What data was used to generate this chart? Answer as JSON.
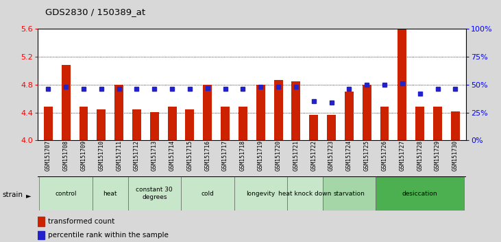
{
  "title": "GDS2830 / 150389_at",
  "samples": [
    "GSM151707",
    "GSM151708",
    "GSM151709",
    "GSM151710",
    "GSM151711",
    "GSM151712",
    "GSM151713",
    "GSM151714",
    "GSM151715",
    "GSM151716",
    "GSM151717",
    "GSM151718",
    "GSM151719",
    "GSM151720",
    "GSM151721",
    "GSM151722",
    "GSM151723",
    "GSM151724",
    "GSM151725",
    "GSM151726",
    "GSM151727",
    "GSM151728",
    "GSM151729",
    "GSM151730"
  ],
  "red_values": [
    4.48,
    5.08,
    4.48,
    4.45,
    4.8,
    4.45,
    4.41,
    4.48,
    4.45,
    4.8,
    4.48,
    4.48,
    4.8,
    4.87,
    4.85,
    4.37,
    4.37,
    4.7,
    4.8,
    4.48,
    5.6,
    4.48,
    4.48,
    4.42
  ],
  "blue_values_pct": [
    46,
    48,
    46,
    46,
    46,
    46,
    46,
    46,
    46,
    47,
    46,
    46,
    48,
    48,
    48,
    35,
    34,
    46,
    50,
    50,
    51,
    42,
    46,
    46
  ],
  "groups": [
    {
      "label": "control",
      "start": 0,
      "end": 3,
      "color": "#c8e6c9"
    },
    {
      "label": "heat",
      "start": 3,
      "end": 5,
      "color": "#c8e6c9"
    },
    {
      "label": "constant 30\ndegrees",
      "start": 5,
      "end": 8,
      "color": "#c8e6c9"
    },
    {
      "label": "cold",
      "start": 8,
      "end": 11,
      "color": "#c8e6c9"
    },
    {
      "label": "longevity",
      "start": 11,
      "end": 14,
      "color": "#c8e6c9"
    },
    {
      "label": "heat knock down",
      "start": 14,
      "end": 16,
      "color": "#c8e6c9"
    },
    {
      "label": "starvation",
      "start": 16,
      "end": 19,
      "color": "#a5d6a7"
    },
    {
      "label": "desiccation",
      "start": 19,
      "end": 24,
      "color": "#4caf50"
    }
  ],
  "ylim_left": [
    4.0,
    5.6
  ],
  "ylim_right": [
    0,
    100
  ],
  "yticks_left": [
    4.0,
    4.4,
    4.8,
    5.2,
    5.6
  ],
  "yticks_right": [
    0,
    25,
    50,
    75,
    100
  ],
  "ytick_labels_right": [
    "0%",
    "25%",
    "50%",
    "75%",
    "100%"
  ],
  "bar_color": "#cc2200",
  "blue_color": "#2222cc",
  "bg_color": "#d8d8d8",
  "plot_bg": "#ffffff",
  "bar_width": 0.5
}
